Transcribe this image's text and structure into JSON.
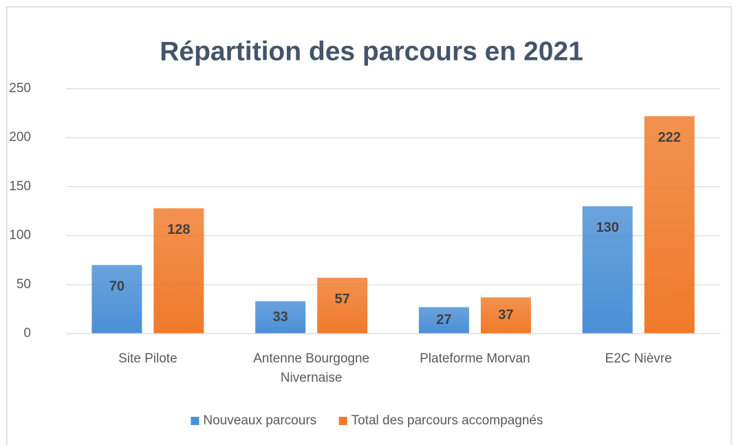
{
  "chart_data": {
    "type": "bar",
    "title": "Répartition des parcours en 2021",
    "categories": [
      "Site Pilote",
      "Antenne Bourgogne Nivernaise",
      "Plateforme Morvan",
      "E2C Nièvre"
    ],
    "series": [
      {
        "name": "Nouveaux parcours",
        "color": "#4a8fd6",
        "values": [
          70,
          33,
          27,
          130
        ]
      },
      {
        "name": "Total des parcours accompagnés",
        "color": "#f07a2a",
        "values": [
          128,
          57,
          37,
          222
        ]
      }
    ],
    "ylim": [
      0,
      250
    ],
    "yticks": [
      0,
      50,
      100,
      150,
      200,
      250
    ],
    "grid": true,
    "legend": "bottom"
  }
}
